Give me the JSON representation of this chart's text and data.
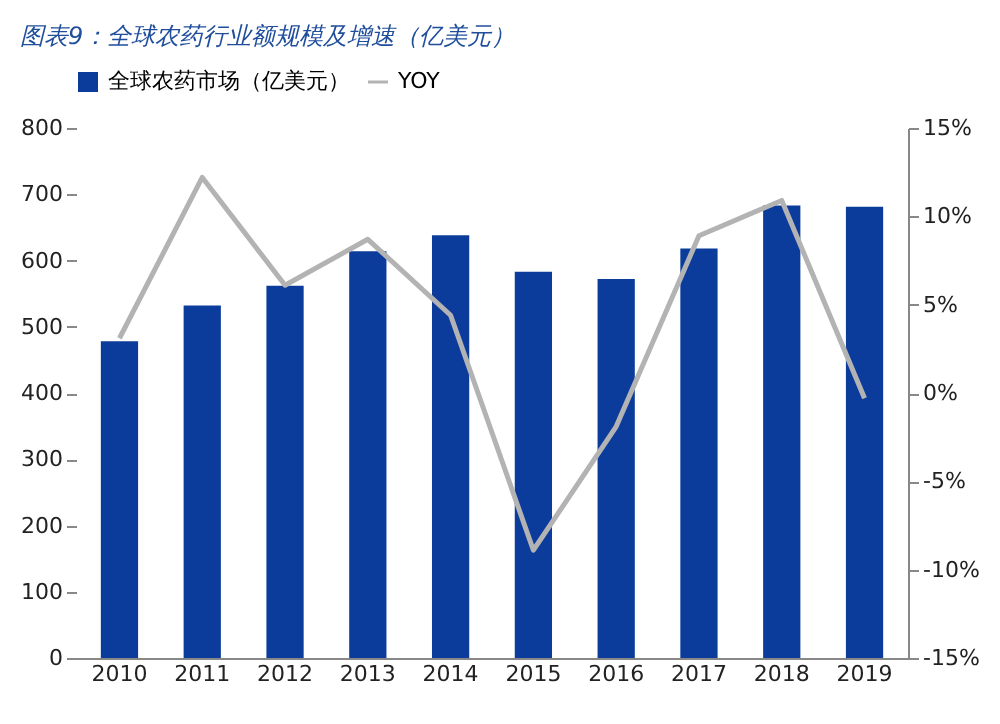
{
  "chart_data": {
    "type": "bar",
    "title": "图表9：全球农药行业额规模及增速（亿美元）",
    "categories": [
      "2010",
      "2011",
      "2012",
      "2013",
      "2014",
      "2015",
      "2016",
      "2017",
      "2018",
      "2019"
    ],
    "series": [
      {
        "name": "全球农药市场（亿美元）",
        "color": "#0b3c9c",
        "values": [
          478,
          532,
          562,
          614,
          638,
          583,
          572,
          618,
          683,
          681
        ]
      },
      {
        "name": "YOY",
        "type": "line",
        "axis": "y2",
        "color": "#b3b3b3",
        "values": [
          3.1,
          12.2,
          6.1,
          8.7,
          4.4,
          -8.9,
          -1.9,
          8.9,
          10.9,
          -0.3
        ]
      }
    ],
    "ylim": [
      0,
      800
    ],
    "yticks": [
      0,
      100,
      200,
      300,
      400,
      500,
      600,
      700,
      800
    ],
    "y2lim": [
      -15,
      15
    ],
    "y2ticks": [
      {
        "value": -15,
        "label": "-15%"
      },
      {
        "value": -10,
        "label": "-10%"
      },
      {
        "value": -5,
        "label": "-5%"
      },
      {
        "value": 0,
        "label": "0%"
      },
      {
        "value": 5,
        "label": "5%"
      },
      {
        "value": 10,
        "label": "10%"
      },
      {
        "value": 15,
        "label": "15%"
      }
    ],
    "legend": "top",
    "grid": false
  }
}
